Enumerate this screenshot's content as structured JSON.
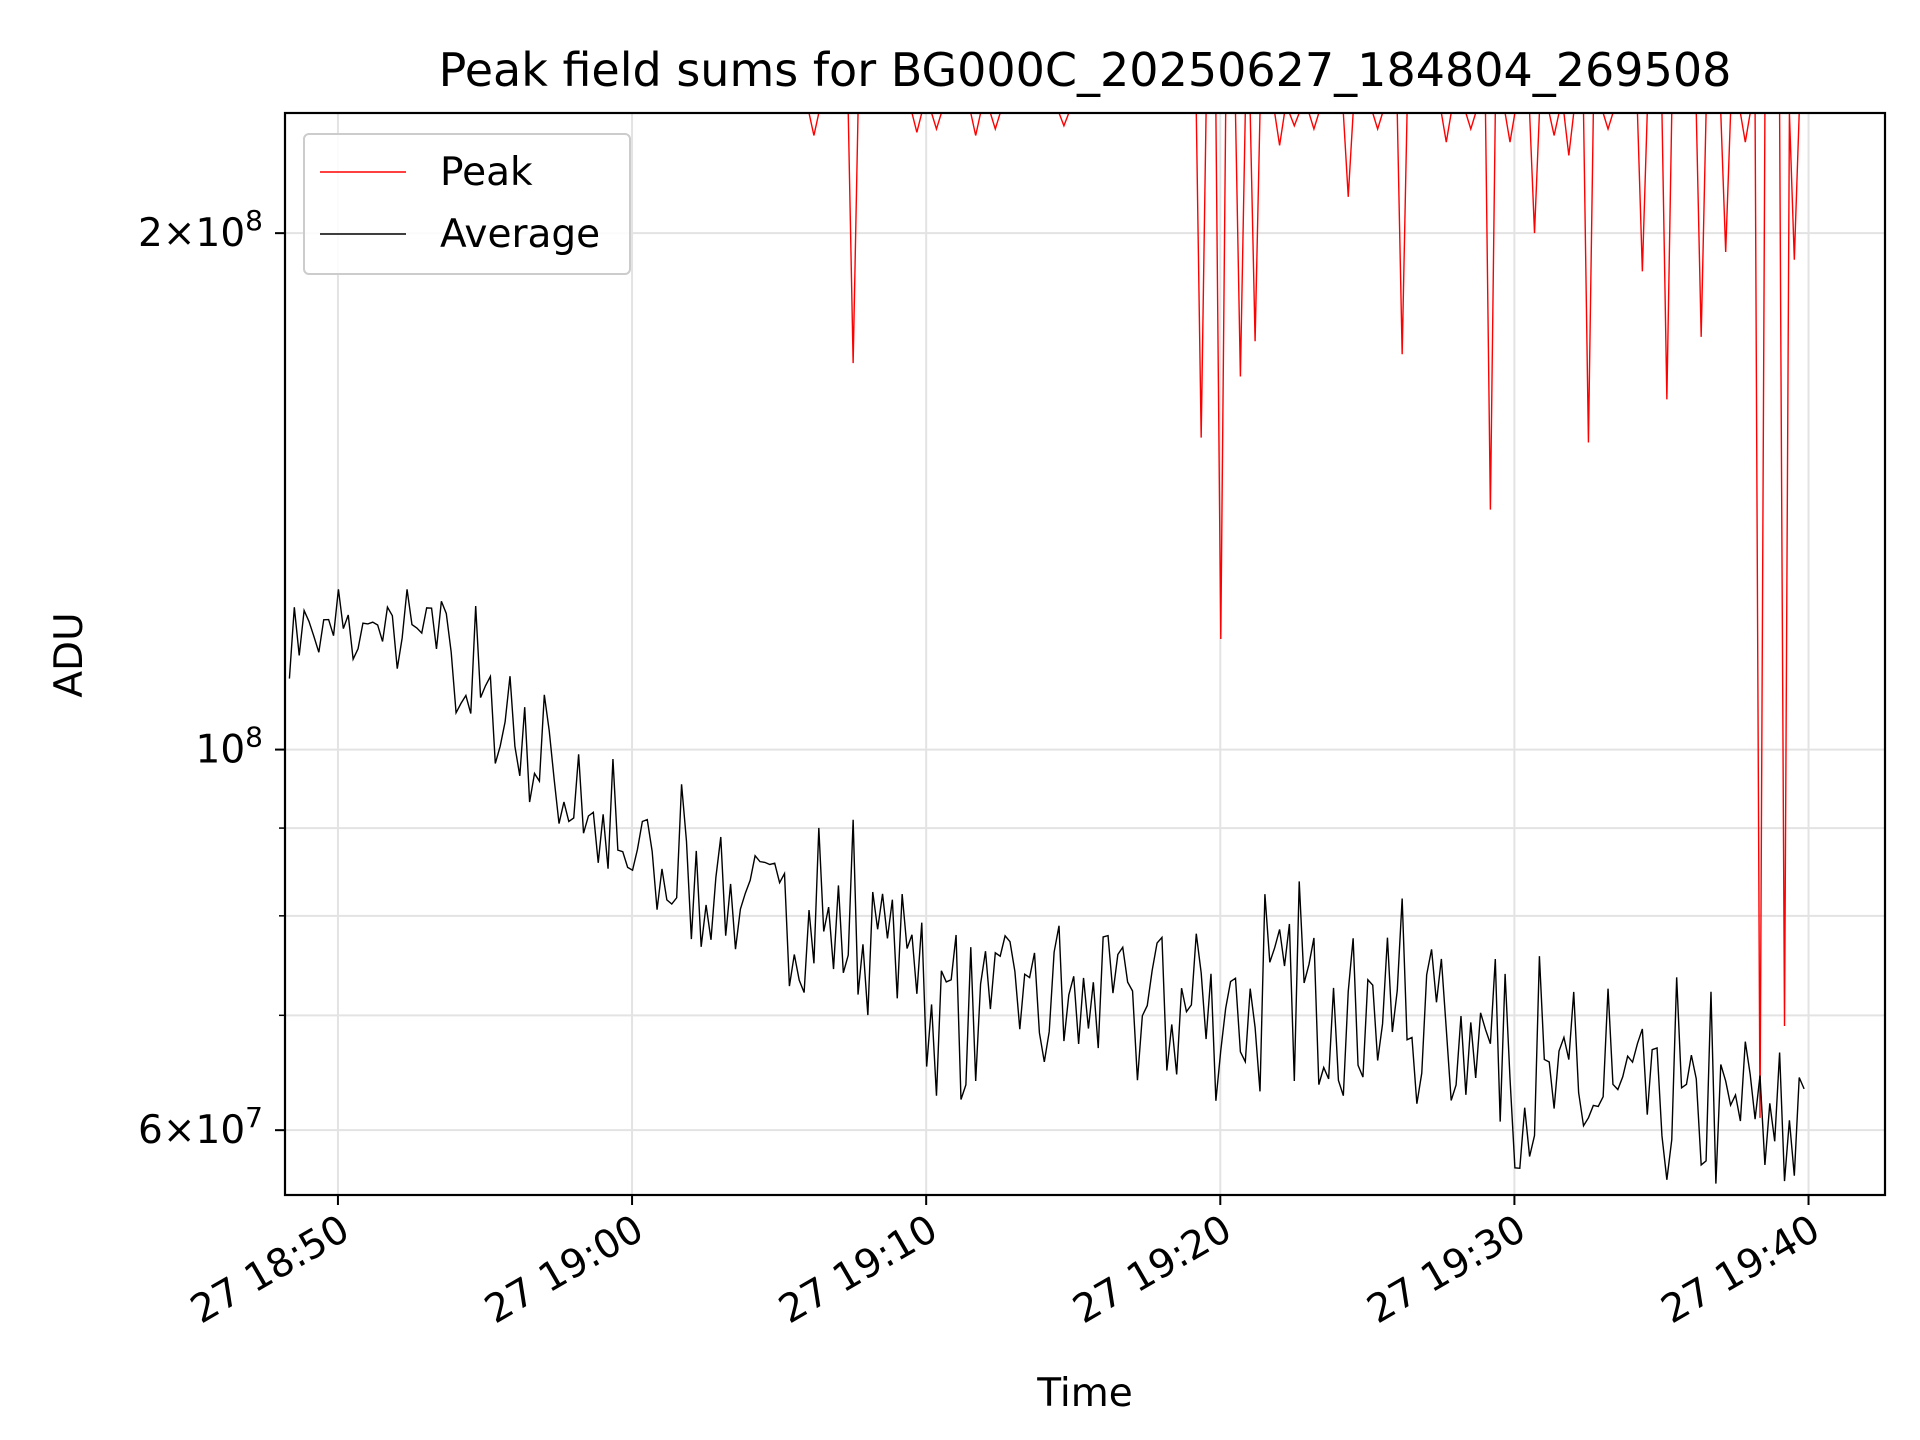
{
  "chart_data": {
    "type": "line",
    "title": "Peak field sums for BG000C_20250627_184804_269508",
    "xlabel": "Time",
    "ylabel": "ADU",
    "yscale": "log",
    "ylim": [
      55000000,
      235000000
    ],
    "xlim_minutes": [
      -1.8,
      52.6
    ],
    "grid": true,
    "legend_position": "upper-left",
    "x_ticks": [
      {
        "minute": 0,
        "label": "27 18:50"
      },
      {
        "minute": 10,
        "label": "27 19:00"
      },
      {
        "minute": 20,
        "label": "27 19:10"
      },
      {
        "minute": 30,
        "label": "27 19:20"
      },
      {
        "minute": 40,
        "label": "27 19:30"
      },
      {
        "minute": 50,
        "label": "27 19:40"
      }
    ],
    "y_major_ticks": [
      {
        "value": 60000000,
        "label_base": "6×10",
        "label_exp": "7"
      },
      {
        "value": 100000000,
        "label_base": "10",
        "label_exp": "8"
      },
      {
        "value": 200000000,
        "label_base": "2×10",
        "label_exp": "8"
      }
    ],
    "y_minor_gridlines": [
      70000000,
      80000000,
      90000000
    ],
    "time_axis": {
      "start": "2025-06-27 18:48:12",
      "step_seconds": 10
    },
    "series": [
      {
        "name": "Peak",
        "color": "#ff0000",
        "values": [
          235000000,
          235000000,
          235000000,
          235000000,
          235000000,
          235000000,
          235000000,
          235000000,
          235000000,
          235000000,
          235000000,
          235000000,
          235000000,
          235000000,
          235000000,
          235000000,
          235000000,
          235000000,
          235000000,
          235000000,
          235000000,
          235000000,
          235000000,
          235000000,
          235000000,
          235000000,
          235000000,
          235000000,
          235000000,
          235000000,
          235000000,
          235000000,
          235000000,
          235000000,
          235000000,
          235000000,
          235000000,
          235000000,
          235000000,
          235000000,
          235000000,
          235000000,
          235000000,
          235000000,
          235000000,
          235000000,
          235000000,
          235000000,
          235000000,
          235000000,
          235000000,
          235000000,
          235000000,
          235000000,
          235000000,
          235000000,
          235000000,
          235000000,
          235000000,
          235000000,
          235000000,
          235000000,
          235000000,
          235000000,
          235000000,
          235000000,
          235000000,
          235000000,
          235000000,
          235000000,
          235000000,
          235000000,
          235000000,
          235000000,
          235000000,
          235000000,
          235000000,
          235000000,
          235000000,
          235000000,
          235000000,
          235000000,
          235000000,
          235000000,
          235000000,
          235000000,
          235000000,
          235000000,
          235000000,
          235000000,
          235000000,
          235000000,
          235000000,
          235000000,
          235000000,
          235000000,
          235000000,
          235000000,
          235000000,
          235000000,
          235000000,
          235000000,
          235000000,
          235000000,
          235000000,
          235000000,
          235000000,
          235000000,
          235000000,
          235000000,
          235000000,
          235000000,
          235000000,
          235000000,
          235000000,
          235000000,
          235000000,
          235000000,
          235000000,
          235000000,
          235000000,
          235000000,
          235000000,
          235000000,
          235000000,
          235000000,
          235000000,
          235000000,
          235000000,
          235000000,
          235000000,
          235000000,
          235000000,
          235000000,
          235000000,
          235000000,
          235000000,
          235000000,
          235000000,
          235000000,
          235000000,
          235000000,
          235000000,
          235000000,
          235000000,
          235000000,
          235000000,
          235000000,
          235000000,
          235000000,
          235000000,
          235000000,
          235000000,
          235000000,
          235000000,
          235000000,
          235000000,
          235000000,
          235000000,
          235000000,
          235000000,
          235000000,
          235000000,
          235000000,
          235000000,
          235000000,
          235000000,
          235000000,
          235000000,
          235000000,
          235000000,
          235000000,
          235000000,
          235000000,
          235000000,
          235000000,
          235000000,
          235000000,
          235000000,
          235000000,
          235000000,
          235000000,
          235000000,
          235000000,
          235000000,
          235000000,
          235000000,
          235000000,
          235000000,
          235000000,
          235000000,
          235000000,
          235000000,
          235000000,
          235000000,
          235000000,
          235000000,
          235000000,
          235000000,
          235000000,
          235000000,
          235000000,
          235000000,
          235000000,
          235000000,
          235000000,
          235000000,
          235000000,
          235000000,
          235000000,
          235000000,
          235000000,
          235000000,
          235000000,
          235000000,
          235000000,
          235000000,
          235000000,
          235000000,
          235000000,
          235000000,
          235000000,
          235000000,
          235000000,
          235000000,
          235000000,
          235000000,
          235000000,
          235000000,
          235000000,
          235000000,
          235000000,
          235000000,
          235000000,
          235000000,
          235000000,
          235000000,
          235000000,
          235000000,
          235000000,
          235000000,
          235000000,
          235000000,
          235000000,
          235000000,
          235000000,
          235000000,
          235000000,
          235000000,
          235000000,
          235000000,
          235000000,
          235000000,
          235000000,
          235000000,
          235000000,
          235000000,
          235000000,
          235000000,
          235000000,
          235000000,
          235000000,
          235000000,
          235000000,
          235000000,
          235000000,
          235000000,
          235000000,
          235000000,
          235000000,
          235000000,
          235000000,
          235000000,
          235000000,
          235000000,
          235000000,
          235000000,
          235000000,
          235000000,
          235000000,
          235000000,
          235000000,
          235000000,
          235000000,
          235000000,
          235000000,
          235000000,
          235000000,
          235000000,
          235000000,
          235000000,
          235000000,
          235000000,
          235000000,
          235000000,
          235000000,
          235000000,
          235000000,
          235000000,
          235000000,
          235000000,
          235000000,
          235000000,
          235000000,
          235000000,
          235000000,
          235000000,
          235000000,
          235000000,
          235000000,
          235000000,
          235000000,
          235000000,
          235000000
        ],
        "dips": [
          [
            16.1,
            228000000
          ],
          [
            17.5,
            168000000
          ],
          [
            19.6,
            229000000
          ],
          [
            20.3,
            230000000
          ],
          [
            21.7,
            228000000
          ],
          [
            22.4,
            230000000
          ],
          [
            24.6,
            231000000
          ],
          [
            29.3,
            152000000
          ],
          [
            30.0,
            116000000
          ],
          [
            30.7,
            165000000
          ],
          [
            31.1,
            173000000
          ],
          [
            32.0,
            225000000
          ],
          [
            32.5,
            231000000
          ],
          [
            33.2,
            230000000
          ],
          [
            34.3,
            210000000
          ],
          [
            35.4,
            230000000
          ],
          [
            36.1,
            170000000
          ],
          [
            37.7,
            226000000
          ],
          [
            38.5,
            230000000
          ],
          [
            39.1,
            138000000
          ],
          [
            39.8,
            226000000
          ],
          [
            40.6,
            200000000
          ],
          [
            41.4,
            228000000
          ],
          [
            41.9,
            222000000
          ],
          [
            42.5,
            151000000
          ],
          [
            43.2,
            230000000
          ],
          [
            44.4,
            190000000
          ],
          [
            45.1,
            160000000
          ],
          [
            46.4,
            174000000
          ],
          [
            47.2,
            195000000
          ],
          [
            47.9,
            226000000
          ],
          [
            48.3,
            61000000
          ],
          [
            49.1,
            69000000
          ],
          [
            49.5,
            193000000
          ],
          [
            50.7,
            220000000
          ],
          [
            51.4,
            198000000
          ],
          [
            51.9,
            173000000
          ]
        ]
      },
      {
        "name": "Average",
        "color": "#000000",
        "values": []
      }
    ]
  }
}
